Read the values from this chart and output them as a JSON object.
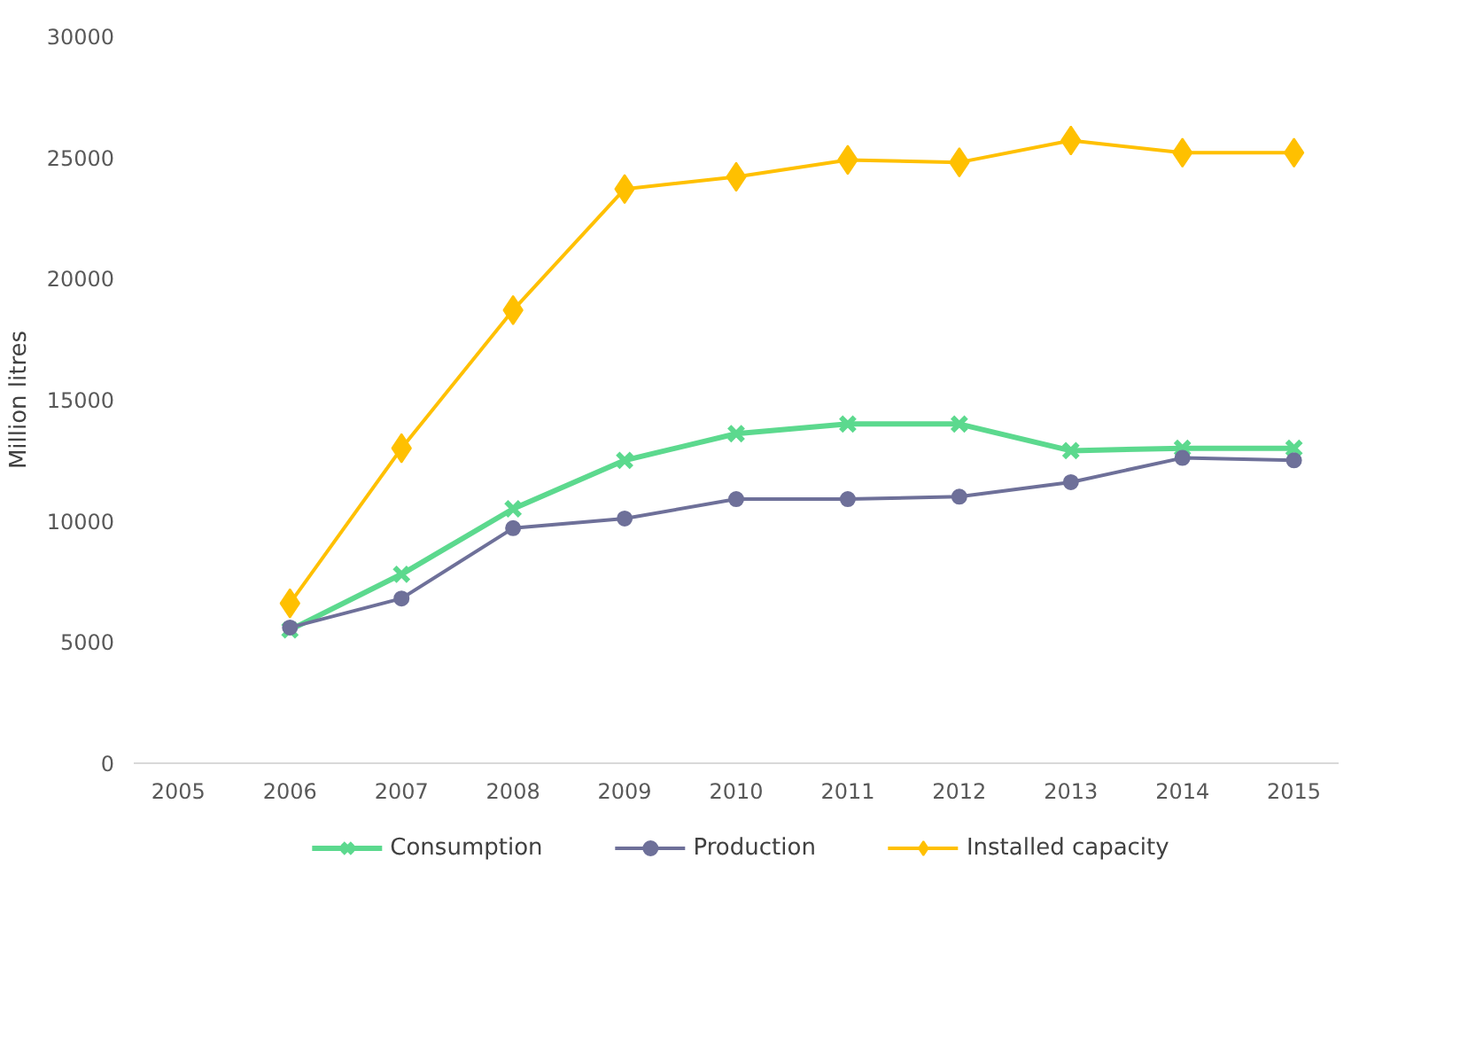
{
  "chart_data": {
    "type": "line",
    "ylabel": "Million litres",
    "x": [
      2006,
      2007,
      2008,
      2009,
      2010,
      2011,
      2012,
      2013,
      2014,
      2015
    ],
    "xlim": [
      2004.6,
      2015.4
    ],
    "xticks": [
      2005,
      2006,
      2007,
      2008,
      2009,
      2010,
      2011,
      2012,
      2013,
      2014,
      2015
    ],
    "ylim": [
      0,
      30000
    ],
    "yticks": [
      0,
      5000,
      10000,
      15000,
      20000,
      25000,
      30000
    ],
    "grid": false,
    "legend": "bottom",
    "series": [
      {
        "name": "Consumption",
        "color": "#5cd98e",
        "marker": "cross",
        "values": [
          5500,
          7800,
          10500,
          12500,
          13600,
          14000,
          14000,
          12900,
          13000,
          13000
        ]
      },
      {
        "name": "Production",
        "color": "#6e7099",
        "marker": "circle",
        "values": [
          5600,
          6800,
          9700,
          10100,
          10900,
          10900,
          11000,
          11600,
          12600,
          12500
        ]
      },
      {
        "name": "Installed capacity",
        "color": "#ffc000",
        "marker": "diamond",
        "values": [
          6600,
          13000,
          18700,
          23700,
          24200,
          24900,
          24800,
          25700,
          25200,
          25200
        ]
      }
    ]
  }
}
